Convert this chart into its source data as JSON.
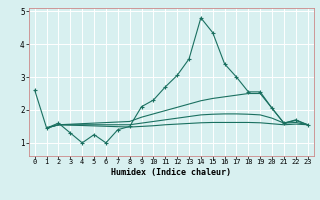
{
  "xlabel": "Humidex (Indice chaleur)",
  "background_color": "#d8f0f0",
  "grid_color": "#ffffff",
  "line_color": "#1a7060",
  "x": [
    0,
    1,
    2,
    3,
    4,
    5,
    6,
    7,
    8,
    9,
    10,
    11,
    12,
    13,
    14,
    15,
    16,
    17,
    18,
    19,
    20,
    21,
    22,
    23
  ],
  "line1": [
    2.6,
    1.45,
    1.6,
    1.3,
    1.0,
    1.25,
    1.0,
    1.4,
    1.5,
    2.1,
    2.3,
    2.7,
    3.05,
    3.55,
    4.8,
    4.35,
    3.4,
    3.0,
    2.55,
    2.55,
    2.05,
    1.6,
    1.7,
    1.55
  ],
  "line2": [
    null,
    1.45,
    1.55,
    null,
    null,
    null,
    null,
    null,
    1.65,
    1.78,
    1.88,
    1.98,
    2.08,
    2.18,
    2.28,
    2.35,
    2.4,
    2.45,
    2.5,
    2.5,
    2.05,
    1.6,
    1.68,
    1.55
  ],
  "line3": [
    null,
    1.45,
    1.55,
    null,
    null,
    null,
    null,
    null,
    1.55,
    1.6,
    1.65,
    1.7,
    1.75,
    1.8,
    1.85,
    1.87,
    1.88,
    1.88,
    1.87,
    1.85,
    1.75,
    1.6,
    1.62,
    1.55
  ],
  "line4": [
    null,
    1.45,
    1.55,
    null,
    null,
    null,
    null,
    null,
    1.48,
    1.5,
    1.52,
    1.55,
    1.57,
    1.59,
    1.61,
    1.62,
    1.62,
    1.62,
    1.62,
    1.61,
    1.58,
    1.55,
    1.57,
    1.55
  ],
  "ylim": [
    0.6,
    5.1
  ],
  "xlim": [
    -0.5,
    23.5
  ],
  "yticks": [
    1,
    2,
    3,
    4,
    5
  ],
  "xticks": [
    0,
    1,
    2,
    3,
    4,
    5,
    6,
    7,
    8,
    9,
    10,
    11,
    12,
    13,
    14,
    15,
    16,
    17,
    18,
    19,
    20,
    21,
    22,
    23
  ]
}
